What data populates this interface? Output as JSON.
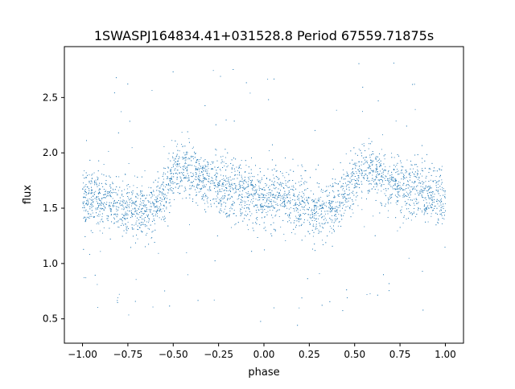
{
  "chart_data": {
    "type": "scatter",
    "title": "1SWASPJ164834.41+031528.8 Period 67559.71875s",
    "xlabel": "phase",
    "ylabel": "flux",
    "xlim": [
      -1.1,
      1.1
    ],
    "ylim": [
      0.28,
      2.96
    ],
    "xticks": [
      -1.0,
      -0.75,
      -0.5,
      -0.25,
      0.0,
      0.25,
      0.5,
      0.75,
      1.0
    ],
    "xtick_labels": [
      "−1.00",
      "−0.75",
      "−0.50",
      "−0.25",
      "0.00",
      "0.25",
      "0.50",
      "0.75",
      "1.00"
    ],
    "yticks": [
      0.5,
      1.0,
      1.5,
      2.0,
      2.5
    ],
    "ytick_labels": [
      "0.5",
      "1.0",
      "1.5",
      "2.0",
      "2.5"
    ],
    "grid": false,
    "marker_color": "#1f77b4",
    "phase_range": [
      -1.0,
      1.0
    ],
    "light_curve": {
      "phase": [
        -1.0,
        -0.9,
        -0.8,
        -0.7,
        -0.6,
        -0.5,
        -0.45,
        -0.4,
        -0.3,
        -0.2,
        -0.1,
        0.0,
        0.1,
        0.2,
        0.3,
        0.4,
        0.5,
        0.55,
        0.6,
        0.7,
        0.8,
        0.9,
        1.0
      ],
      "median_flux": [
        1.58,
        1.58,
        1.53,
        1.47,
        1.52,
        1.78,
        1.85,
        1.83,
        1.72,
        1.68,
        1.63,
        1.58,
        1.58,
        1.53,
        1.47,
        1.52,
        1.78,
        1.85,
        1.83,
        1.72,
        1.68,
        1.63,
        1.58
      ]
    }
  }
}
